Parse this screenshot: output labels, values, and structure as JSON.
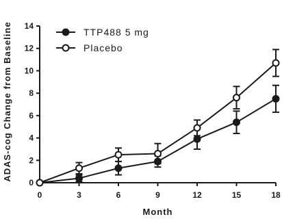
{
  "chart_data": {
    "type": "line",
    "xlabel": "Month",
    "ylabel": "ADAS-cog Change from Baseline",
    "x": [
      0,
      3,
      6,
      9,
      12,
      15,
      18
    ],
    "xticks": [
      "0",
      "3",
      "6",
      "9",
      "12",
      "15",
      "18"
    ],
    "yticks": [
      "0",
      "2",
      "4",
      "6",
      "8",
      "10",
      "12",
      "14"
    ],
    "xlim": [
      0,
      18
    ],
    "ylim": [
      0,
      14
    ],
    "grid": false,
    "legend_position": "top-left",
    "series": [
      {
        "name": "TTP488 5 mg",
        "marker": "filled-circle",
        "y": [
          0,
          0.4,
          1.3,
          1.9,
          3.9,
          5.4,
          7.5
        ],
        "error": [
          0,
          0.3,
          0.6,
          0.5,
          0.9,
          1.0,
          1.2
        ]
      },
      {
        "name": "Placebo",
        "marker": "open-circle",
        "y": [
          0,
          1.3,
          2.5,
          2.6,
          4.9,
          7.6,
          10.7
        ],
        "error": [
          0,
          0.5,
          0.6,
          0.9,
          0.7,
          1.0,
          1.2
        ]
      }
    ],
    "color": "#1a1a1a"
  }
}
